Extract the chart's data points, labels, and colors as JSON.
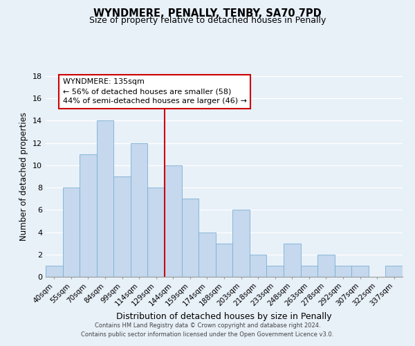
{
  "title": "WYNDMERE, PENALLY, TENBY, SA70 7PD",
  "subtitle": "Size of property relative to detached houses in Penally",
  "xlabel": "Distribution of detached houses by size in Penally",
  "ylabel": "Number of detached properties",
  "categories": [
    "40sqm",
    "55sqm",
    "70sqm",
    "84sqm",
    "99sqm",
    "114sqm",
    "129sqm",
    "144sqm",
    "159sqm",
    "174sqm",
    "188sqm",
    "203sqm",
    "218sqm",
    "233sqm",
    "248sqm",
    "263sqm",
    "278sqm",
    "292sqm",
    "307sqm",
    "322sqm",
    "337sqm"
  ],
  "values": [
    1,
    8,
    11,
    14,
    9,
    12,
    8,
    10,
    7,
    4,
    3,
    6,
    2,
    1,
    3,
    1,
    2,
    1,
    1,
    0,
    1
  ],
  "bar_color": "#c5d8ed",
  "bar_edge_color": "#7bafd4",
  "vline_x_idx": 6.5,
  "vline_color": "#cc0000",
  "annotation_title": "WYNDMERE: 135sqm",
  "annotation_line1": "← 56% of detached houses are smaller (58)",
  "annotation_line2": "44% of semi-detached houses are larger (46) →",
  "annotation_box_color": "#ffffff",
  "annotation_box_edge": "#cc0000",
  "ylim": [
    0,
    18
  ],
  "yticks": [
    0,
    2,
    4,
    6,
    8,
    10,
    12,
    14,
    16,
    18
  ],
  "footer1": "Contains HM Land Registry data © Crown copyright and database right 2024.",
  "footer2": "Contains public sector information licensed under the Open Government Licence v3.0.",
  "bg_color": "#e8f0f8",
  "grid_color": "#ffffff"
}
